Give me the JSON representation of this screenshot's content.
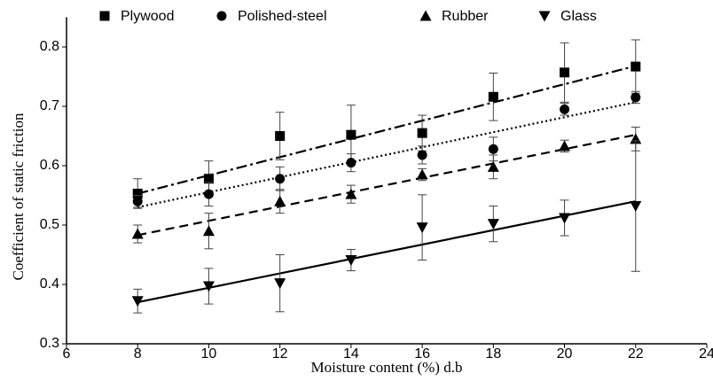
{
  "chart_data": {
    "type": "scatter",
    "xlabel": "Moisture content (%) d.b",
    "ylabel": "Coefficient of static friction",
    "x": [
      8,
      10,
      12,
      14,
      16,
      18,
      20,
      22
    ],
    "trend_x": [
      8,
      22
    ],
    "xlim": [
      6,
      24
    ],
    "xticks": [
      6,
      8,
      10,
      12,
      14,
      16,
      18,
      20,
      22,
      24
    ],
    "ylim": [
      0.3,
      0.85
    ],
    "yticks": [
      0.3,
      0.4,
      0.5,
      0.6,
      0.7,
      0.8
    ],
    "legend": "top",
    "series": [
      {
        "name": "Plywood",
        "color": "#000000",
        "marker": "square",
        "dash": "dashdot",
        "values": [
          0.553,
          0.578,
          0.65,
          0.652,
          0.655,
          0.716,
          0.757,
          0.767
        ],
        "errors": [
          0.025,
          0.03,
          0.04,
          0.05,
          0.03,
          0.04,
          0.05,
          0.045
        ],
        "trend": [
          0.553,
          0.768
        ]
      },
      {
        "name": "Polished-steel",
        "color": "#000000",
        "marker": "circle",
        "dash": "dotted",
        "values": [
          0.54,
          0.552,
          0.578,
          0.605,
          0.618,
          0.628,
          0.695,
          0.715
        ],
        "errors": [
          0.01,
          0.02,
          0.02,
          0.015,
          0.015,
          0.02,
          0.01,
          0.01
        ],
        "trend": [
          0.53,
          0.707
        ]
      },
      {
        "name": "Rubber",
        "color": "#000000",
        "marker": "triangle",
        "dash": "dashed",
        "values": [
          0.485,
          0.49,
          0.54,
          0.552,
          0.585,
          0.598,
          0.633,
          0.645
        ],
        "errors": [
          0.015,
          0.03,
          0.02,
          0.015,
          0.01,
          0.02,
          0.01,
          0.02
        ],
        "trend": [
          0.483,
          0.652
        ]
      },
      {
        "name": "Glass",
        "color": "#000000",
        "marker": "triangle-down",
        "dash": "solid",
        "values": [
          0.372,
          0.397,
          0.402,
          0.441,
          0.496,
          0.502,
          0.512,
          0.532
        ],
        "errors": [
          0.02,
          0.03,
          0.048,
          0.018,
          0.055,
          0.03,
          0.03,
          0.11
        ],
        "trend": [
          0.37,
          0.54
        ]
      }
    ]
  }
}
